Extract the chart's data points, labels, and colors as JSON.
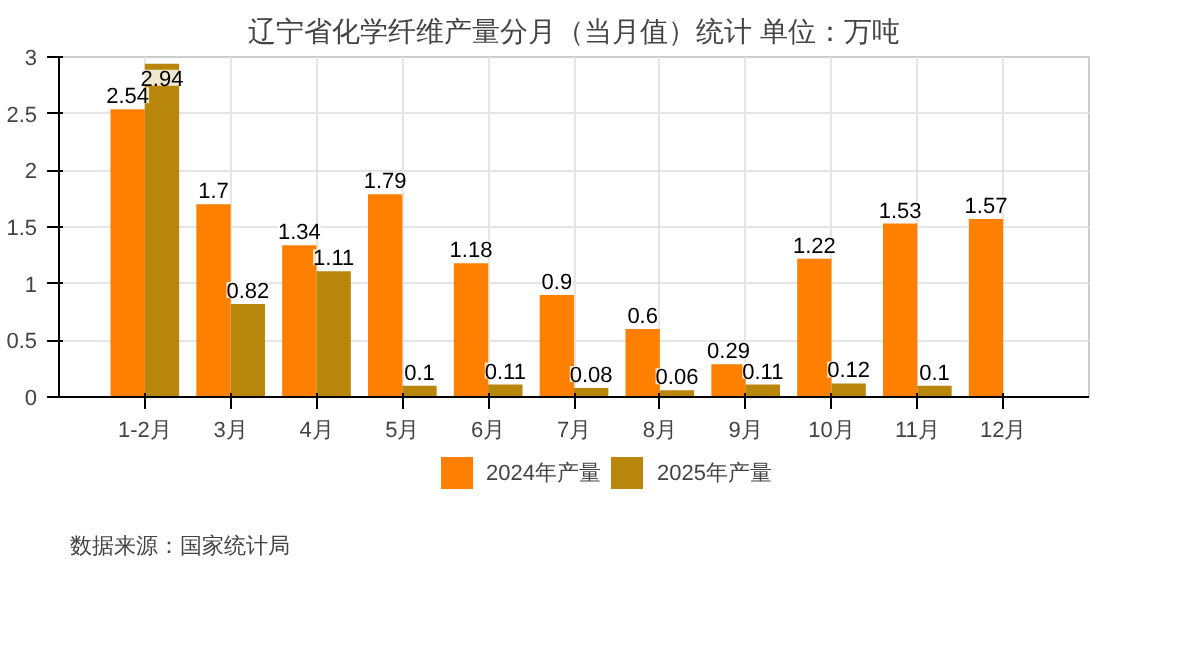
{
  "chart_data": {
    "type": "bar",
    "title": "辽宁省化学纤维产量分月（当月值）统计 单位：万吨",
    "categories": [
      "1-2月",
      "3月",
      "4月",
      "5月",
      "6月",
      "7月",
      "8月",
      "9月",
      "10月",
      "11月",
      "12月"
    ],
    "series": [
      {
        "name": "2024年产量",
        "color": "#ff8000",
        "values": [
          2.54,
          1.7,
          1.34,
          1.79,
          1.18,
          0.9,
          0.6,
          0.29,
          1.22,
          1.53,
          1.57
        ]
      },
      {
        "name": "2025年产量",
        "color": "#b8860b",
        "values": [
          2.94,
          0.82,
          1.11,
          0.1,
          0.11,
          0.08,
          0.06,
          0.11,
          0.12,
          0.1,
          null
        ]
      }
    ],
    "ylim": [
      0,
      3
    ],
    "yticks": [
      0,
      0.5,
      1,
      1.5,
      2,
      2.5,
      3
    ],
    "grid": true,
    "legend": "bottom",
    "data_labels": true,
    "annotations": [
      "数据来源：国家统计局"
    ]
  }
}
